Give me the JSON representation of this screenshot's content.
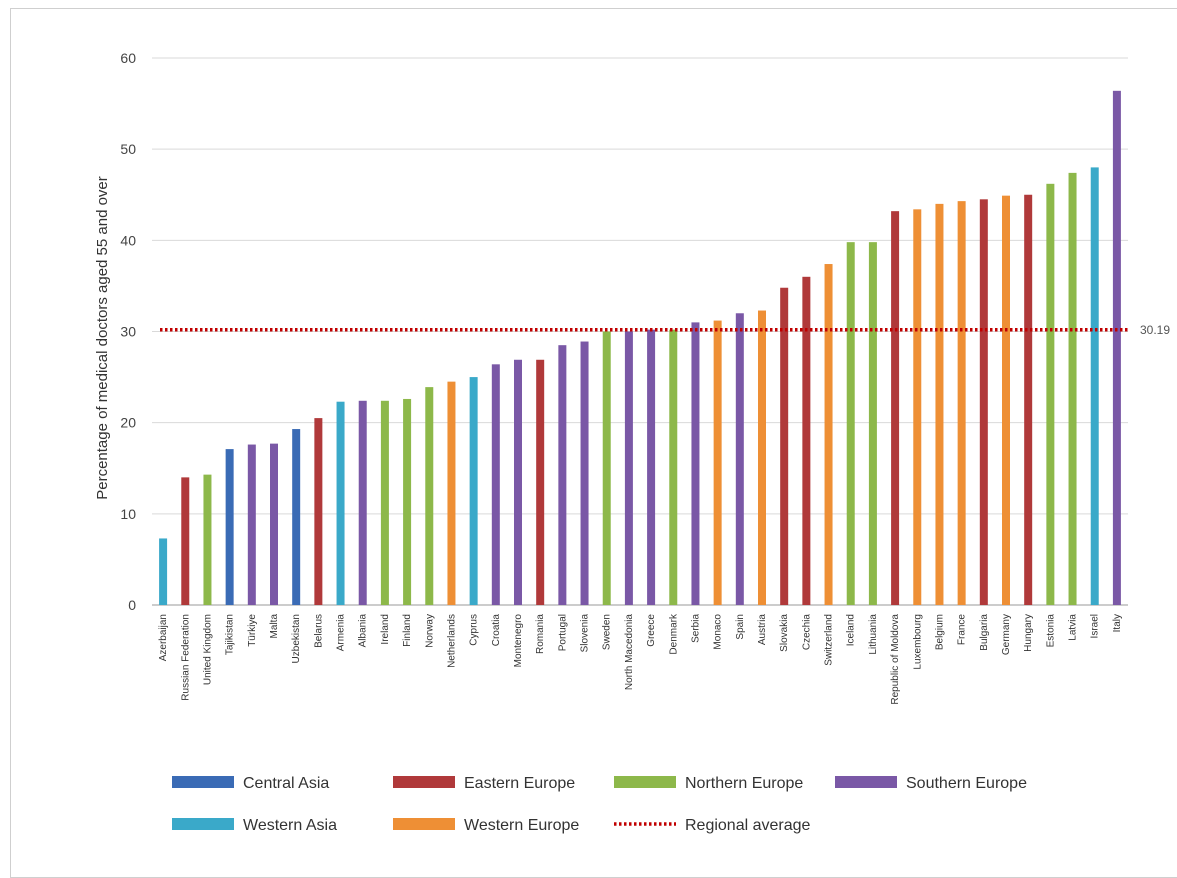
{
  "chart_data": {
    "type": "bar",
    "title": "",
    "xlabel": "",
    "ylabel": "Percentage of medical doctors aged 55 and over",
    "ylim": [
      0,
      60
    ],
    "yticks": [
      0,
      10,
      20,
      30,
      40,
      50,
      60
    ],
    "grid": "horizontal",
    "legend_position": "bottom",
    "reference_line": {
      "name": "Regional average",
      "value": 30.19,
      "label": "30.19",
      "color": "#c00000",
      "style": "dotted"
    },
    "regions": [
      {
        "name": "Central Asia",
        "color": "#3a6bb5"
      },
      {
        "name": "Eastern Europe",
        "color": "#b0393a"
      },
      {
        "name": "Northern Europe",
        "color": "#8db84a"
      },
      {
        "name": "Southern Europe",
        "color": "#7a58a6"
      },
      {
        "name": "Western Asia",
        "color": "#3aa9c9"
      },
      {
        "name": "Western Europe",
        "color": "#ee8f35"
      }
    ],
    "categories": [
      "Azerbaijan",
      "Russian Federation",
      "United Kingdom",
      "Tajikistan",
      "Türkiye",
      "Malta",
      "Uzbekistan",
      "Belarus",
      "Armenia",
      "Albania",
      "Ireland",
      "Finland",
      "Norway",
      "Netherlands",
      "Cyprus",
      "Croatia",
      "Montenegro",
      "Romania",
      "Portugal",
      "Slovenia",
      "Sweden",
      "North Macedonia",
      "Greece",
      "Denmark",
      "Serbia",
      "Monaco",
      "Spain",
      "Austria",
      "Slovakia",
      "Czechia",
      "Switzerland",
      "Iceland",
      "Lithuania",
      "Republic of Moldova",
      "Luxembourg",
      "Belgium",
      "France",
      "Bulgaria",
      "Germany",
      "Hungary",
      "Estonia",
      "Latvia",
      "Israel",
      "Italy"
    ],
    "values": [
      7.3,
      14.0,
      14.3,
      17.1,
      17.6,
      17.7,
      19.3,
      20.5,
      22.3,
      22.4,
      22.4,
      22.6,
      23.9,
      24.5,
      25.0,
      26.4,
      26.9,
      26.9,
      28.5,
      28.9,
      30.0,
      30.0,
      30.2,
      30.2,
      31.0,
      31.2,
      32.0,
      32.3,
      34.8,
      36.0,
      37.4,
      39.8,
      39.8,
      43.2,
      43.4,
      44.0,
      44.3,
      44.5,
      44.9,
      45.0,
      46.2,
      47.4,
      48.0,
      56.4
    ],
    "bar_regions": [
      "Western Asia",
      "Eastern Europe",
      "Northern Europe",
      "Central Asia",
      "Southern Europe",
      "Southern Europe",
      "Central Asia",
      "Eastern Europe",
      "Western Asia",
      "Southern Europe",
      "Northern Europe",
      "Northern Europe",
      "Northern Europe",
      "Western Europe",
      "Western Asia",
      "Southern Europe",
      "Southern Europe",
      "Eastern Europe",
      "Southern Europe",
      "Southern Europe",
      "Northern Europe",
      "Southern Europe",
      "Southern Europe",
      "Northern Europe",
      "Southern Europe",
      "Western Europe",
      "Southern Europe",
      "Western Europe",
      "Eastern Europe",
      "Eastern Europe",
      "Western Europe",
      "Northern Europe",
      "Northern Europe",
      "Eastern Europe",
      "Western Europe",
      "Western Europe",
      "Western Europe",
      "Eastern Europe",
      "Western Europe",
      "Eastern Europe",
      "Northern Europe",
      "Northern Europe",
      "Western Asia",
      "Southern Europe"
    ],
    "legend": [
      "Central Asia",
      "Eastern Europe",
      "Northern Europe",
      "Southern Europe",
      "Western Asia",
      "Western Europe",
      "Regional average"
    ]
  }
}
